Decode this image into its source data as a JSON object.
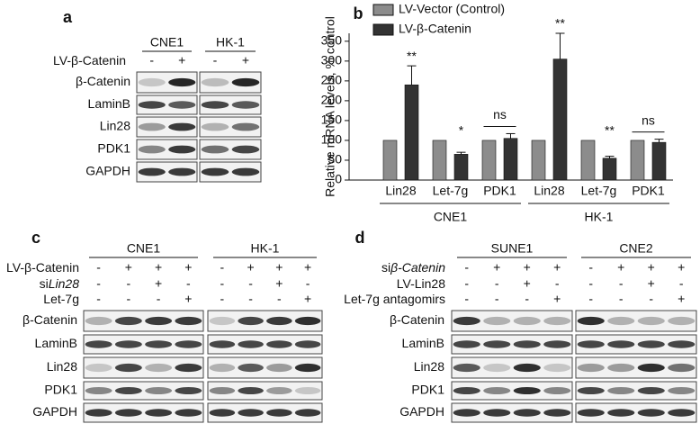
{
  "panels": {
    "a": {
      "label": "a",
      "cell_lines": [
        "CNE1",
        "HK-1"
      ],
      "conditions": [
        {
          "parts": [
            {
              "text": "LV-β-Catenin"
            }
          ],
          "marks": [
            [
              "-",
              "+"
            ],
            [
              "-",
              "+"
            ]
          ]
        }
      ],
      "proteins": [
        "β-Catenin",
        "LaminB",
        "Lin28",
        "PDK1",
        "GAPDH"
      ]
    },
    "c": {
      "label": "c",
      "cell_lines": [
        "CNE1",
        "HK-1"
      ],
      "conditions": [
        {
          "parts": [
            {
              "text": "LV-β-Catenin"
            }
          ],
          "marks": [
            [
              "-",
              "+",
              "+",
              "+"
            ],
            [
              "-",
              "+",
              "+",
              "+"
            ]
          ]
        },
        {
          "parts": [
            {
              "text": "si"
            },
            {
              "text": "Lin28",
              "italic": true
            }
          ],
          "marks": [
            [
              "-",
              "-",
              "+",
              "-"
            ],
            [
              "-",
              "-",
              "+",
              "-"
            ]
          ]
        },
        {
          "parts": [
            {
              "text": "Let-7g"
            }
          ],
          "marks": [
            [
              "-",
              "-",
              "-",
              "+"
            ],
            [
              "-",
              "-",
              "-",
              "+"
            ]
          ]
        }
      ],
      "proteins": [
        "β-Catenin",
        "LaminB",
        "Lin28",
        "PDK1",
        "GAPDH"
      ]
    },
    "d": {
      "label": "d",
      "cell_lines": [
        "SUNE1",
        "CNE2"
      ],
      "conditions": [
        {
          "parts": [
            {
              "text": "si"
            },
            {
              "text": "β-Catenin",
              "italic": true
            }
          ],
          "marks": [
            [
              "-",
              "+",
              "+",
              "+"
            ],
            [
              "-",
              "+",
              "+",
              "+"
            ]
          ]
        },
        {
          "parts": [
            {
              "text": "LV-Lin28"
            }
          ],
          "marks": [
            [
              "-",
              "-",
              "+",
              "-"
            ],
            [
              "-",
              "-",
              "+",
              "-"
            ]
          ]
        },
        {
          "parts": [
            {
              "text": "Let-7g antagomirs"
            }
          ],
          "marks": [
            [
              "-",
              "-",
              "-",
              "+"
            ],
            [
              "-",
              "-",
              "-",
              "+"
            ]
          ]
        }
      ],
      "proteins": [
        "β-Catenin",
        "LaminB",
        "Lin28",
        "PDK1",
        "GAPDH"
      ]
    }
  },
  "chart_data": {
    "type": "bar",
    "panel_label": "b",
    "ylabel": "Relative mRNA levels, % control",
    "categories": [
      "Lin28",
      "Let-7g",
      "PDK1",
      "Lin28",
      "Let-7g",
      "PDK1"
    ],
    "groups": [
      "CNE1",
      "HK-1"
    ],
    "series": [
      {
        "name": "LV-Vector (Control)",
        "color": "#8c8c8c",
        "values": [
          100,
          100,
          100,
          100,
          100,
          100
        ]
      },
      {
        "name": "LV-β-Catenin",
        "color": "#333333",
        "values": [
          240,
          65,
          105,
          305,
          55,
          95
        ],
        "errors": [
          48,
          5,
          12,
          65,
          5,
          8
        ]
      }
    ],
    "annotations": [
      "**",
      "*",
      "ns",
      "**",
      "**",
      "ns"
    ],
    "annotation_bracket": [
      false,
      false,
      true,
      false,
      false,
      true
    ],
    "ylim": [
      0,
      370
    ],
    "yticks": [
      0,
      50,
      100,
      150,
      200,
      250,
      300,
      350
    ]
  }
}
